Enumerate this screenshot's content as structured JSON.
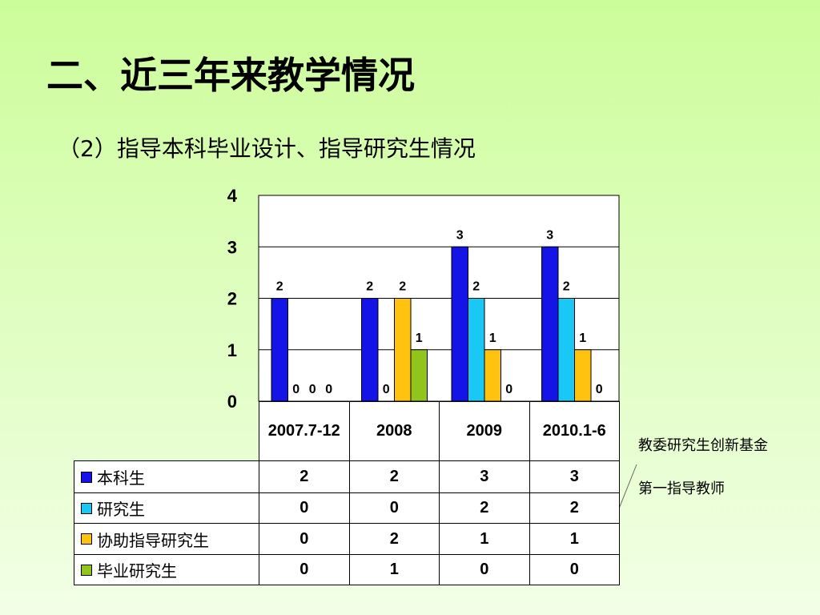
{
  "header": {
    "title": "二、近三年来教学情况",
    "subtitle": "（2）指导本科毕业设计、指导研究生情况"
  },
  "chart_data": {
    "type": "bar",
    "categories": [
      "2007.7-12",
      "2008",
      "2009",
      "2010.1-6"
    ],
    "series": [
      {
        "name": "本科生",
        "color": "#1414e6",
        "values": [
          2,
          2,
          3,
          3
        ]
      },
      {
        "name": "研究生",
        "color": "#19c8f5",
        "values": [
          0,
          0,
          2,
          2
        ]
      },
      {
        "name": "协助指导研究生",
        "color": "#ffc20e",
        "values": [
          0,
          2,
          1,
          1
        ]
      },
      {
        "name": "毕业研究生",
        "color": "#92c51b",
        "values": [
          0,
          1,
          0,
          0
        ]
      }
    ],
    "ylim": [
      0,
      4
    ],
    "yticks": [
      0,
      1,
      2,
      3,
      4
    ],
    "grid": true,
    "annotations": [
      "教委研究生创新基金",
      "第一指导教师"
    ]
  }
}
